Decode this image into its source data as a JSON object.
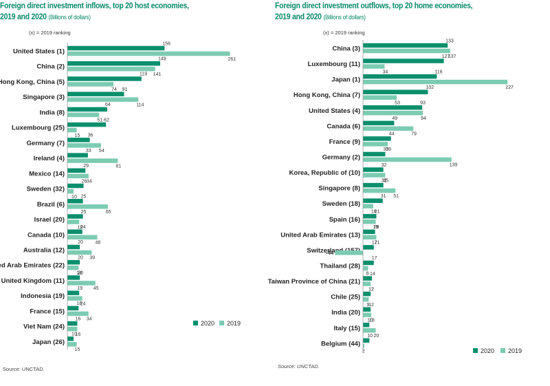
{
  "colors": {
    "2020": "#0b8f6d",
    "2019": "#7ccbb2",
    "title": "#0a8a6a"
  },
  "rank_note": "(x) = 2019 ranking",
  "chart_data": [
    {
      "type": "bar",
      "orientation": "horizontal",
      "title": "Foreign direct investment inflows, top 20 host economies, 2019 and 2020",
      "title_line1": "Foreign direct investment inflows, top 20 host economies,",
      "title_line2": "2019 and 2020",
      "unit": "(Billions of dollars)",
      "rank_note": "(x) = 2019 ranking",
      "source": "Source:   UNCTAD.",
      "legend": [
        "2020",
        "2019"
      ],
      "legend_position": "bottom-right",
      "categories": [
        "United States (1)",
        "China (2)",
        "Hong Kong, China (5)",
        "Singapore (3)",
        "India (8)",
        "Luxembourg (25)",
        "Germany (7)",
        "Ireland (4)",
        "Mexico (14)",
        "Sweden (32)",
        "Brazil (6)",
        "Israel (20)",
        "Canada (10)",
        "Australia (12)",
        "United Arab Emirates (22)",
        "United Kingdom (11)",
        "Indonesia (19)",
        "France (15)",
        "Viet Nam (24)",
        "Japan (26)"
      ],
      "series": [
        {
          "name": "2020",
          "values": [
            156,
            149,
            119,
            91,
            64,
            62,
            36,
            33,
            29,
            26,
            25,
            25,
            24,
            20,
            20,
            20,
            19,
            18,
            16,
            10
          ]
        },
        {
          "name": "2019",
          "values": [
            261,
            141,
            74,
            114,
            51,
            15,
            54,
            81,
            34,
            10,
            65,
            19,
            48,
            39,
            18,
            45,
            24,
            34,
            16,
            15
          ]
        }
      ]
    },
    {
      "type": "bar",
      "orientation": "horizontal",
      "title": "Foreign direct investment outflows, top 20 home economies, 2019 and 2020",
      "title_line1": "Foreign direct investment outflows, top 20 home economies,",
      "title_line2": "2019 and 2020",
      "unit": "(Billions of dollars)",
      "rank_note": "(x) = 2019 ranking",
      "source": "Source: UNCTAD.",
      "legend": [
        "2020",
        "2019"
      ],
      "legend_position": "bottom-right",
      "categories": [
        "China (3)",
        "Luxembourg (11)",
        "Japan (1)",
        "Hong Kong, China (7)",
        "United States (4)",
        "Canada (6)",
        "France (9)",
        "Germany (2)",
        "Korea, Republic of (10)",
        "Singapore (8)",
        "Sweden (18)",
        "Spain (16)",
        "United Arab Emirates (13)",
        "Switzerland (157)",
        "Thailand (28)",
        "Taiwan Province of China (21)",
        "Chile (25)",
        "India (20)",
        "Italy (15)",
        "Belgium (44)"
      ],
      "series": [
        {
          "name": "2020",
          "values": [
            133,
            127,
            116,
            102,
            93,
            49,
            44,
            35,
            32,
            32,
            31,
            21,
            19,
            17,
            17,
            14,
            12,
            12,
            10,
            10
          ]
        },
        {
          "name": "2019",
          "values": [
            137,
            34,
            227,
            53,
            94,
            79,
            39,
            139,
            35,
            51,
            16,
            20,
            21,
            -44,
            8,
            12,
            9,
            13,
            20,
            2
          ]
        }
      ]
    }
  ]
}
